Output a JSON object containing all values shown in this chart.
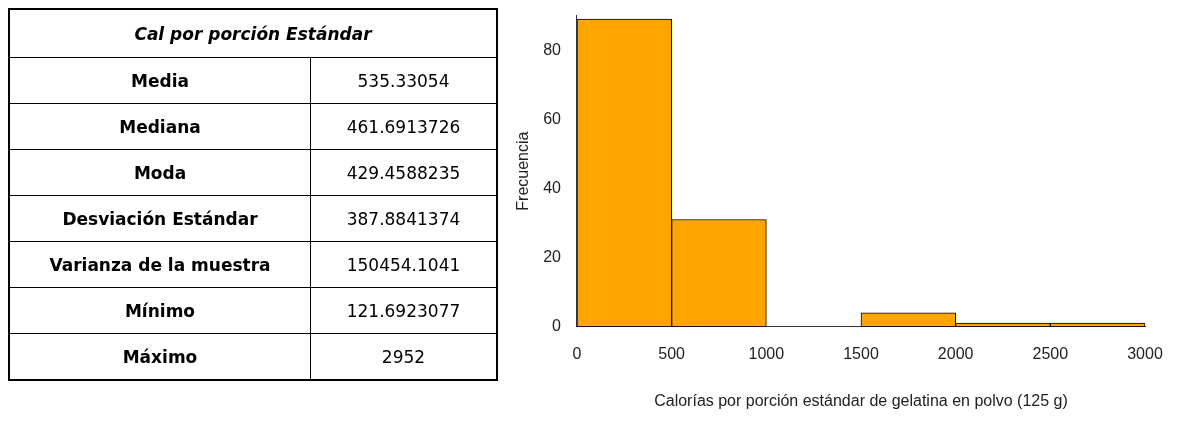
{
  "chart_data": [
    {
      "type": "other",
      "title": "Cal por porción Estándar",
      "categories": [
        "Media",
        "Mediana",
        "Moda",
        "Desviación  Estándar",
        "Varianza de la muestra",
        "Mínimo",
        "Máximo"
      ],
      "value_labels": [
        "535.33054",
        "461.6913726",
        "429.4588235",
        "387.8841374",
        "150454.1041",
        "121.6923077",
        "2952"
      ]
    },
    {
      "type": "histogram",
      "bins": [
        0,
        500,
        1000,
        1500,
        2000,
        2500,
        3000
      ],
      "values": [
        89,
        31,
        0,
        4,
        1,
        1
      ],
      "color": "#ffa500",
      "xlabel": "Calorías por porción estándar de gelatina en polvo (125 g)",
      "ylabel": "Frecuencia",
      "xlim": [
        0,
        3000
      ],
      "xticks": [
        0,
        500,
        1000,
        1500,
        2000,
        2500,
        3000
      ],
      "ylim": [
        0,
        90
      ],
      "yticks": [
        0,
        20,
        40,
        60,
        80
      ]
    }
  ]
}
